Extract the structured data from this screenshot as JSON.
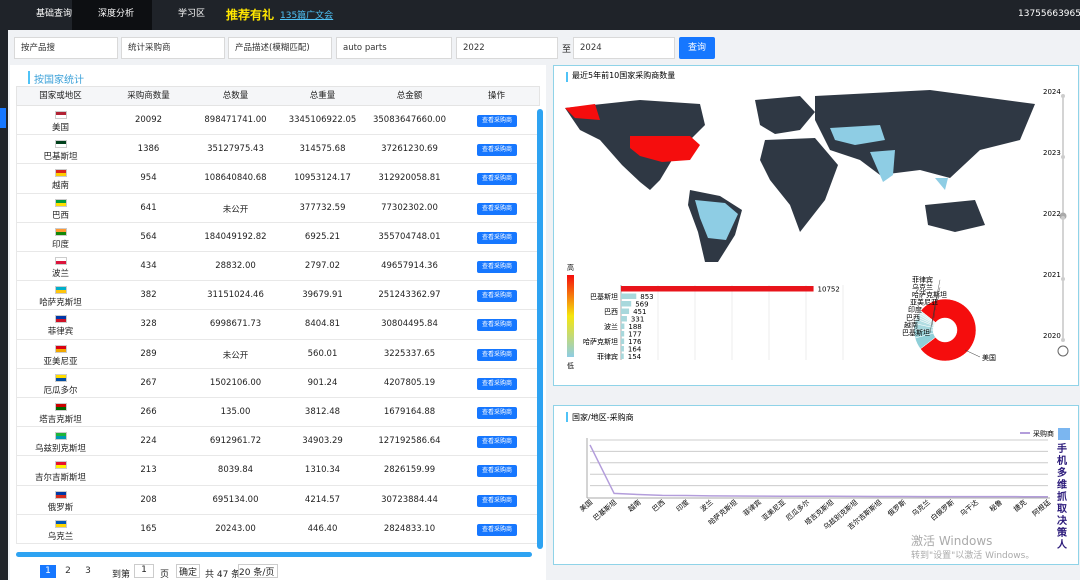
{
  "nav": {
    "items": [
      "基础查询",
      "深度分析",
      "学习区"
    ],
    "promo": "推荐有礼",
    "link": "135篇广文会",
    "phone": "13755663965"
  },
  "filters": {
    "search_type": "按产品搜",
    "stat_type": "统计采购商",
    "desc_mode": "产品描述(模糊匹配)",
    "keyword": "auto parts",
    "year_from": "2022",
    "to": "至",
    "year_to": "2024",
    "submit": "查询"
  },
  "table": {
    "title": "按国家统计",
    "columns": [
      "国家或地区",
      "采购商数量",
      "总数量",
      "总重量",
      "总金额",
      "操作"
    ],
    "action": "查看采购商",
    "rows": [
      [
        "美国",
        "20092",
        "898471741.00",
        "3345106922.05",
        "35083647660.00"
      ],
      [
        "巴基斯坦",
        "1386",
        "35127975.43",
        "314575.68",
        "37261230.69"
      ],
      [
        "越南",
        "954",
        "108640840.68",
        "10953124.17",
        "312920058.81"
      ],
      [
        "巴西",
        "641",
        "未公开",
        "377732.59",
        "77302302.00"
      ],
      [
        "印度",
        "564",
        "184049192.82",
        "6925.21",
        "355704748.01"
      ],
      [
        "波兰",
        "434",
        "28832.00",
        "2797.02",
        "49657914.36"
      ],
      [
        "哈萨克斯坦",
        "382",
        "31151024.46",
        "39679.91",
        "251243362.97"
      ],
      [
        "菲律宾",
        "328",
        "6998671.73",
        "8404.81",
        "30804495.84"
      ],
      [
        "亚美尼亚",
        "289",
        "未公开",
        "560.01",
        "3225337.65"
      ],
      [
        "厄瓜多尔",
        "267",
        "1502106.00",
        "901.24",
        "4207805.19"
      ],
      [
        "塔吉克斯坦",
        "266",
        "135.00",
        "3812.48",
        "1679164.88"
      ],
      [
        "乌兹别克斯坦",
        "224",
        "6912961.72",
        "34903.29",
        "127192586.64"
      ],
      [
        "吉尔吉斯斯坦",
        "213",
        "8039.84",
        "1310.34",
        "2826159.99"
      ],
      [
        "俄罗斯",
        "208",
        "695134.00",
        "4214.57",
        "30723884.44"
      ],
      [
        "乌克兰",
        "165",
        "20243.00",
        "446.40",
        "2824833.10"
      ]
    ]
  },
  "pagination": {
    "pages": [
      "1",
      "2",
      "3"
    ],
    "goto": "到第",
    "page_input": "1",
    "page_unit": "页",
    "confirm": "确定",
    "total": "共 47 条",
    "page_size": "20 条/页"
  },
  "watermark": {
    "title": "激活 Windows",
    "hint": "转到\"设置\"以激活 Windows。",
    "side": "手机多维抓取决策人"
  },
  "chart_data": [
    {
      "type": "map",
      "title": "最近5年前10国家采购商数量",
      "timeline": [
        2024,
        2023,
        2022,
        2021,
        2020
      ],
      "visual_map": {
        "high": "高",
        "low": "低"
      }
    },
    {
      "type": "bar",
      "categories": [
        null,
        "巴基斯坦",
        null,
        "巴西",
        null,
        "波兰",
        null,
        "哈萨克斯坦",
        null,
        "菲律宾"
      ],
      "values": [
        10752,
        853,
        569,
        451,
        331,
        188,
        177,
        176,
        164,
        154
      ],
      "colors": [
        "#e8141b",
        "#a8d8dc",
        "#a8d8dc",
        "#a8d8dc",
        "#a8d8dc",
        "#a8d8dc",
        "#a8d8dc",
        "#a8d8dc",
        "#a8d8dc",
        "#a8d8dc"
      ],
      "xlim": [
        0,
        11000
      ]
    },
    {
      "type": "pie",
      "categories": [
        "美国",
        "巴基斯坦",
        "越南",
        "巴西",
        "印度",
        "亚美尼亚",
        "哈萨克斯坦",
        "乌克兰",
        "菲律宾"
      ],
      "values": [
        10752,
        853,
        569,
        451,
        331,
        177,
        176,
        164,
        154
      ],
      "colors": [
        "#f50d0d",
        "#8fcfd8",
        "#9ad3da",
        "#a6d8de",
        "#b2dde2",
        "#bde2e6",
        "#c8e7ea",
        "#d2ecee",
        "#dcf0f2"
      ]
    },
    {
      "type": "line",
      "title": "国家/地区-采购商",
      "categories": [
        "美国",
        "巴基斯坦",
        "越南",
        "巴西",
        "印度",
        "波兰",
        "哈萨克斯坦",
        "菲律宾",
        "亚美尼亚",
        "厄瓜多尔",
        "塔吉克斯坦",
        "乌兹别克斯坦",
        "吉尔吉斯斯坦",
        "俄罗斯",
        "乌克兰",
        "白俄罗斯",
        "乌干达",
        "秘鲁",
        "捷克",
        "阿根廷"
      ],
      "series": [
        {
          "name": "采购商",
          "color": "#b39ddb",
          "values": [
            20092,
            1386,
            954,
            641,
            564,
            434,
            382,
            328,
            289,
            267,
            266,
            224,
            213,
            208,
            165,
            150,
            140,
            130,
            120,
            110
          ]
        }
      ],
      "ylim": [
        0,
        22000
      ]
    }
  ]
}
